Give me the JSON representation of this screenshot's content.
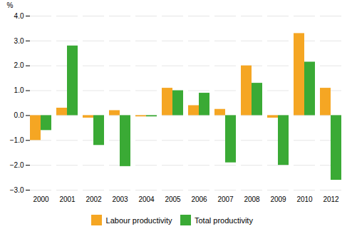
{
  "chart_data": {
    "type": "bar",
    "categories": [
      "2000",
      "2001",
      "2002",
      "2003",
      "2004",
      "2005",
      "2006",
      "2007",
      "2008",
      "2009",
      "2010",
      "2012"
    ],
    "series": [
      {
        "name": "Labour productivity",
        "color": "#f5a623",
        "values": [
          -1.0,
          0.3,
          -0.1,
          0.2,
          -0.05,
          1.1,
          0.4,
          0.25,
          2.0,
          -0.1,
          3.3,
          1.1
        ]
      },
      {
        "name": "Total productivity",
        "color": "#3aaa35",
        "values": [
          -0.6,
          2.8,
          -1.2,
          -2.05,
          -0.05,
          1.0,
          0.9,
          -1.9,
          1.3,
          -2.0,
          2.15,
          -2.6
        ]
      }
    ],
    "ylabel": "%",
    "ylim": [
      -3,
      4
    ],
    "yticks": [
      -3,
      -2,
      -1,
      0,
      1,
      2,
      3,
      4
    ],
    "grid": true,
    "legend": "lower center"
  }
}
